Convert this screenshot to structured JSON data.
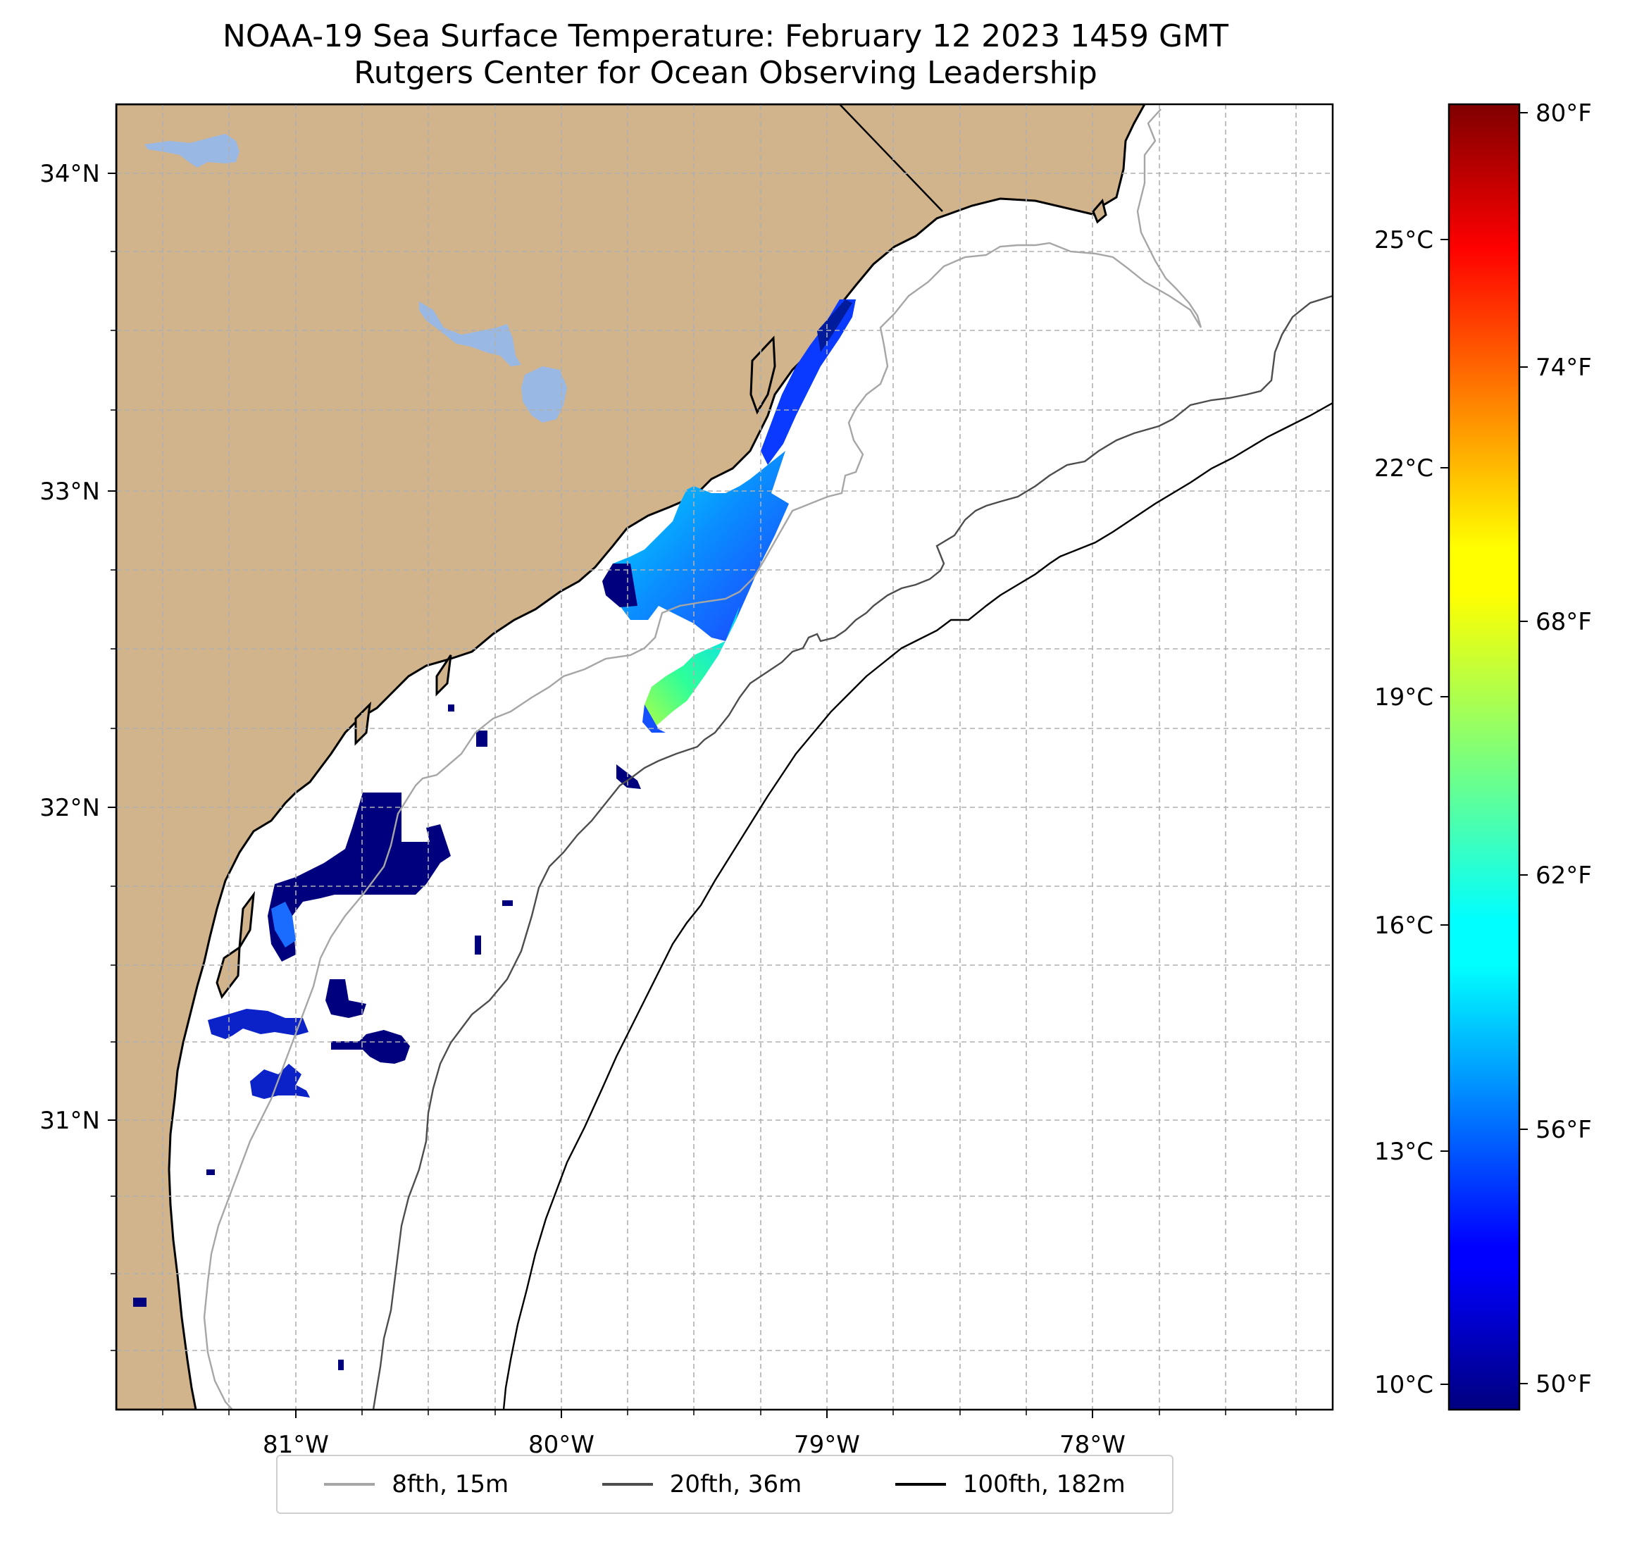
{
  "title": {
    "line1": "NOAA-19 Sea Surface Temperature: February 12 2023 1459 GMT",
    "line2": "Rutgers Center for Ocean Observing Leadership"
  },
  "map": {
    "lon_range": [
      -81.67,
      -77.13
    ],
    "lat_range": [
      30.09,
      34.22
    ],
    "lon_ticks": [
      {
        "value": -81,
        "label": "81°W"
      },
      {
        "value": -80,
        "label": "80°W"
      },
      {
        "value": -79,
        "label": "79°W"
      },
      {
        "value": -78,
        "label": "78°W"
      }
    ],
    "lat_ticks": [
      {
        "value": 34,
        "label": "34°N"
      },
      {
        "value": 33,
        "label": "33°N"
      },
      {
        "value": 32,
        "label": "32°N"
      },
      {
        "value": 31,
        "label": "31°N"
      }
    ],
    "land_color": "#d2b48c",
    "water_body_color": "#9ab8e4",
    "ocean_color": "#ffffff",
    "grid": "dashed"
  },
  "colorbar": {
    "colormap": "jet",
    "range_c": [
      9.6,
      26.8
    ],
    "celsius_ticks": [
      {
        "value": 10,
        "label": "10°C"
      },
      {
        "value": 13,
        "label": "13°C"
      },
      {
        "value": 16,
        "label": "16°C"
      },
      {
        "value": 19,
        "label": "19°C"
      },
      {
        "value": 22,
        "label": "22°C"
      },
      {
        "value": 25,
        "label": "25°C"
      }
    ],
    "fahrenheit_ticks": [
      {
        "value": 50,
        "label": "50°F"
      },
      {
        "value": 56,
        "label": "56°F"
      },
      {
        "value": 62,
        "label": "62°F"
      },
      {
        "value": 68,
        "label": "68°F"
      },
      {
        "value": 74,
        "label": "74°F"
      },
      {
        "value": 80,
        "label": "80°F"
      }
    ]
  },
  "legend": {
    "items": [
      {
        "label": "8fth, 15m",
        "color": "#a6a6a6"
      },
      {
        "label": "20fth, 36m",
        "color": "#4d4d4d"
      },
      {
        "label": "100fth, 182m",
        "color": "#000000"
      }
    ]
  }
}
